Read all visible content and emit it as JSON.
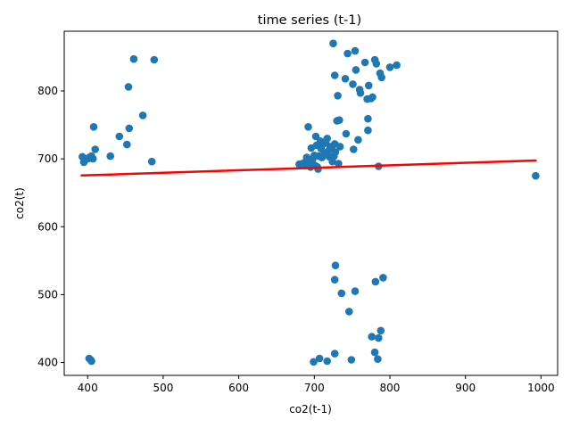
{
  "chart_data": {
    "type": "scatter",
    "title": "time series (t-1)",
    "xlabel": "co2(t-1)",
    "ylabel": "co2(t)",
    "xlim": [
      369,
      1022
    ],
    "ylim": [
      381,
      888
    ],
    "xticks": [
      400,
      500,
      600,
      700,
      800,
      900,
      1000
    ],
    "yticks": [
      400,
      500,
      600,
      700,
      800
    ],
    "grid": false,
    "legend": "none",
    "colors": {
      "points": "#1f77b4",
      "fit_line": "#ff0000"
    },
    "points": [
      [
        393,
        703
      ],
      [
        395,
        695
      ],
      [
        400,
        700
      ],
      [
        402,
        702
      ],
      [
        405,
        704
      ],
      [
        407,
        700
      ],
      [
        408,
        747
      ],
      [
        410,
        714
      ],
      [
        430,
        704
      ],
      [
        442,
        733
      ],
      [
        452,
        721
      ],
      [
        454,
        806
      ],
      [
        455,
        745
      ],
      [
        461,
        847
      ],
      [
        473,
        764
      ],
      [
        485,
        696
      ],
      [
        488,
        846
      ],
      [
        402,
        406
      ],
      [
        404,
        404
      ],
      [
        405,
        402
      ],
      [
        680,
        692
      ],
      [
        684,
        691
      ],
      [
        686,
        694
      ],
      [
        688,
        690
      ],
      [
        690,
        702
      ],
      [
        692,
        747
      ],
      [
        692,
        694
      ],
      [
        694,
        698
      ],
      [
        695,
        688
      ],
      [
        696,
        716
      ],
      [
        697,
        693
      ],
      [
        698,
        700
      ],
      [
        700,
        705
      ],
      [
        701,
        690
      ],
      [
        702,
        733
      ],
      [
        703,
        720
      ],
      [
        704,
        688
      ],
      [
        705,
        685
      ],
      [
        706,
        704
      ],
      [
        708,
        726
      ],
      [
        709,
        715
      ],
      [
        710,
        702
      ],
      [
        712,
        722
      ],
      [
        713,
        706
      ],
      [
        715,
        724
      ],
      [
        717,
        730
      ],
      [
        718,
        711
      ],
      [
        720,
        703
      ],
      [
        721,
        718
      ],
      [
        723,
        715
      ],
      [
        724,
        696
      ],
      [
        726,
        704
      ],
      [
        727,
        722
      ],
      [
        728,
        710
      ],
      [
        730,
        756
      ],
      [
        732,
        693
      ],
      [
        733,
        757
      ],
      [
        734,
        718
      ],
      [
        742,
        737
      ],
      [
        752,
        714
      ],
      [
        758,
        728
      ],
      [
        725,
        870
      ],
      [
        727,
        823
      ],
      [
        731,
        793
      ],
      [
        741,
        818
      ],
      [
        744,
        855
      ],
      [
        751,
        810
      ],
      [
        754,
        859
      ],
      [
        755,
        831
      ],
      [
        760,
        802
      ],
      [
        761,
        797
      ],
      [
        767,
        842
      ],
      [
        770,
        788
      ],
      [
        771,
        759
      ],
      [
        772,
        808
      ],
      [
        775,
        789
      ],
      [
        777,
        791
      ],
      [
        771,
        742
      ],
      [
        780,
        846
      ],
      [
        782,
        840
      ],
      [
        785,
        689
      ],
      [
        787,
        826
      ],
      [
        789,
        820
      ],
      [
        800,
        835
      ],
      [
        809,
        838
      ],
      [
        993,
        675
      ],
      [
        728,
        543
      ],
      [
        727,
        522
      ],
      [
        736,
        502
      ],
      [
        746,
        475
      ],
      [
        754,
        505
      ],
      [
        781,
        519
      ],
      [
        791,
        525
      ],
      [
        776,
        438
      ],
      [
        780,
        415
      ],
      [
        785,
        436
      ],
      [
        788,
        447
      ],
      [
        784,
        405
      ],
      [
        699,
        401
      ],
      [
        707,
        406
      ],
      [
        717,
        402
      ],
      [
        727,
        413
      ],
      [
        749,
        404
      ]
    ],
    "fit_line": {
      "x": [
        392,
        993
      ],
      "y": [
        675.5,
        697.5
      ]
    }
  }
}
